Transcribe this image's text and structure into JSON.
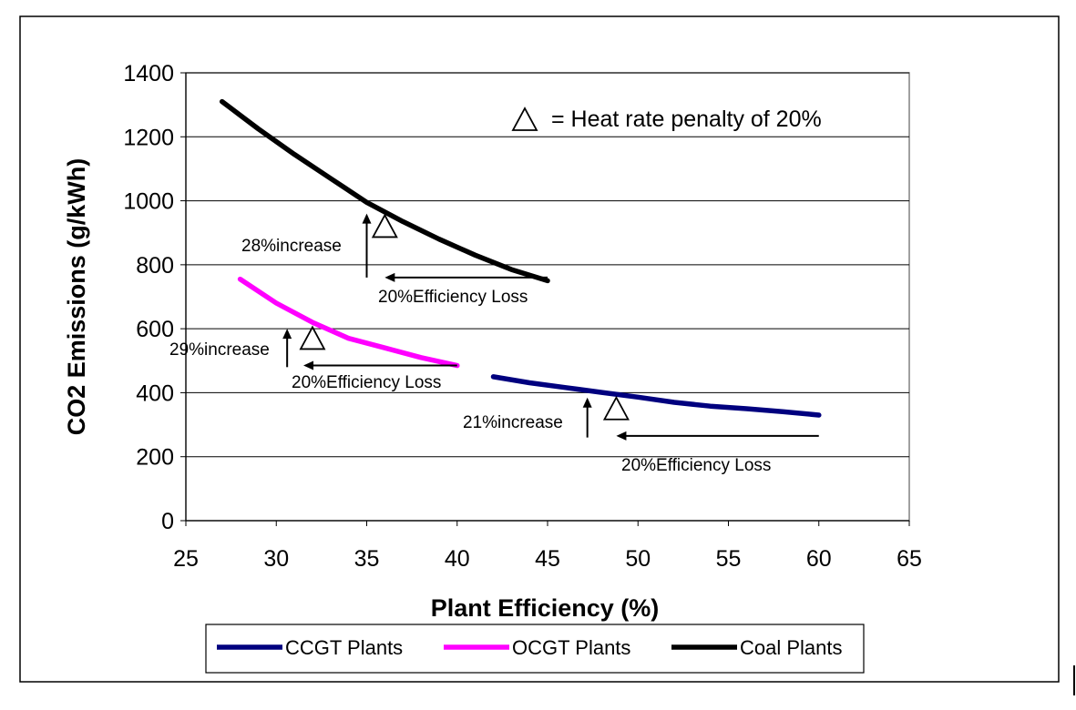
{
  "chart_data": {
    "type": "line",
    "xlabel": "Plant Efficiency (%)",
    "ylabel": "CO2 Emissions (g/kWh)",
    "xlim": [
      25,
      65
    ],
    "ylim": [
      0,
      1400
    ],
    "x_ticks": [
      "25",
      "30",
      "35",
      "40",
      "45",
      "50",
      "55",
      "60",
      "65"
    ],
    "y_ticks": [
      "0",
      "200",
      "400",
      "600",
      "800",
      "1000",
      "1200",
      "1400"
    ],
    "grid": "horizontal",
    "legend_position": "bottom",
    "series": [
      {
        "name": "CCGT Plants",
        "color": "#00007f",
        "points": [
          [
            42,
            450
          ],
          [
            44,
            431
          ],
          [
            46,
            416
          ],
          [
            48,
            401
          ],
          [
            50,
            386
          ],
          [
            52,
            370
          ],
          [
            54,
            358
          ],
          [
            56,
            350
          ],
          [
            58,
            341
          ],
          [
            60,
            330
          ]
        ]
      },
      {
        "name": "OCGT Plants",
        "color": "#ff00ff",
        "points": [
          [
            28,
            755
          ],
          [
            30,
            680
          ],
          [
            32,
            620
          ],
          [
            34,
            570
          ],
          [
            36,
            540
          ],
          [
            38,
            510
          ],
          [
            40,
            485
          ]
        ]
      },
      {
        "name": "Coal Plants",
        "color": "#000000",
        "points": [
          [
            27,
            1310
          ],
          [
            29,
            1225
          ],
          [
            31,
            1145
          ],
          [
            33,
            1070
          ],
          [
            35,
            995
          ],
          [
            37,
            935
          ],
          [
            39,
            880
          ],
          [
            41,
            830
          ],
          [
            43,
            785
          ],
          [
            45,
            750
          ]
        ]
      }
    ],
    "markers": [
      {
        "x": 36,
        "y": 915
      },
      {
        "x": 32,
        "y": 565
      },
      {
        "x": 48.8,
        "y": 345
      }
    ],
    "marker_key": "= Heat rate penalty of 20%",
    "annotations": {
      "coal_increase": "28%increase",
      "coal_loss": "20%Efficiency Loss",
      "ocgt_increase": "29%increase",
      "ocgt_loss": "20%Efficiency Loss",
      "ccgt_increase": "21%increase",
      "ccgt_loss": "20%Efficiency Loss"
    },
    "arrows": [
      {
        "type": "up",
        "x": 35,
        "y_from": 760,
        "y_to": 960
      },
      {
        "type": "left",
        "y": 760,
        "x_from": 45,
        "x_to": 36
      },
      {
        "type": "up",
        "x": 30.6,
        "y_from": 480,
        "y_to": 600
      },
      {
        "type": "left",
        "y": 485,
        "x_from": 40,
        "x_to": 31.5
      },
      {
        "type": "up",
        "x": 47.2,
        "y_from": 260,
        "y_to": 385
      },
      {
        "type": "left",
        "y": 265,
        "x_from": 60,
        "x_to": 48.8
      }
    ]
  }
}
